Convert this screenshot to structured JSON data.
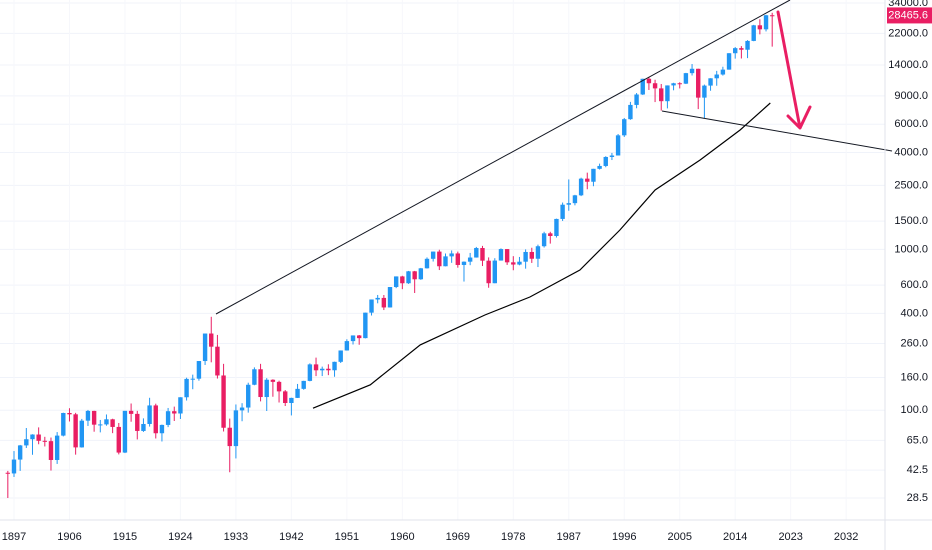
{
  "chart_data": {
    "type": "candlestick",
    "log_scale": true,
    "grid": true,
    "up_color": "#2196f3",
    "down_color": "#e91e63",
    "x": [
      1896,
      1897,
      1898,
      1899,
      1900,
      1901,
      1902,
      1903,
      1904,
      1905,
      1906,
      1907,
      1908,
      1909,
      1910,
      1911,
      1912,
      1913,
      1914,
      1915,
      1916,
      1917,
      1918,
      1919,
      1920,
      1921,
      1922,
      1923,
      1924,
      1925,
      1926,
      1927,
      1928,
      1929,
      1930,
      1931,
      1932,
      1933,
      1934,
      1935,
      1936,
      1937,
      1938,
      1939,
      1940,
      1941,
      1942,
      1943,
      1944,
      1945,
      1946,
      1947,
      1948,
      1949,
      1950,
      1951,
      1952,
      1953,
      1954,
      1955,
      1956,
      1957,
      1958,
      1959,
      1960,
      1961,
      1962,
      1963,
      1964,
      1965,
      1966,
      1967,
      1968,
      1969,
      1970,
      1971,
      1972,
      1973,
      1974,
      1975,
      1976,
      1977,
      1978,
      1979,
      1980,
      1981,
      1982,
      1983,
      1984,
      1985,
      1986,
      1987,
      1988,
      1989,
      1990,
      1991,
      1992,
      1993,
      1994,
      1995,
      1996,
      1997,
      1998,
      1999,
      2000,
      2001,
      2002,
      2003,
      2004,
      2005,
      2006,
      2007,
      2008,
      2009,
      2010,
      2011,
      2012,
      2013,
      2014,
      2015,
      2016,
      2017,
      2018,
      2019,
      2020
    ],
    "open": [
      40.9,
      40.5,
      49.4,
      60.5,
      66.1,
      70.7,
      64.6,
      64.3,
      49.1,
      69.6,
      96.2,
      94.4,
      58.8,
      86.2,
      99.1,
      81.4,
      81.7,
      87.9,
      78.8,
      54.6,
      99.2,
      95,
      74.4,
      82.2,
      107.2,
      72,
      81.1,
      98.7,
      95.5,
      120.5,
      156.7,
      157.2,
      202.4,
      300,
      248.5,
      164.6,
      77.9,
      59.9,
      99.9,
      104,
      144.1,
      179.9,
      120.9,
      154.8,
      150.2,
      131.1,
      111,
      119.4,
      135.9,
      152.3,
      192.9,
      177.2,
      181.2,
      177.3,
      200.1,
      235.4,
      269.2,
      291.9,
      280.9,
      404.4,
      488.4,
      499.5,
      435.7,
      583.7,
      679.4,
      615.9,
      731.1,
      652.1,
      763,
      874.1,
      969.3,
      785.7,
      905.1,
      943.8,
      800.4,
      838.9,
      890.2,
      1020,
      850.9,
      616.2,
      852.4,
      1004.7,
      831.2,
      805,
      838.7,
      964,
      875,
      1046.5,
      1258.6,
      1211.6,
      1546.7,
      1896,
      1938.8,
      2168.6,
      2753.2,
      2633.7,
      3168.8,
      3301.1,
      3754.1,
      3834.4,
      5117.1,
      6448.3,
      7908.3,
      9181.4,
      11497.1,
      10786.9,
      10021.5,
      8341.6,
      10453.9,
      10783,
      10717.5,
      12463.2,
      13264.8,
      8776.4,
      10428.1,
      11577.5,
      12217.6,
      13104.1,
      16576.7,
      17823.1,
      17425,
      19762.6,
      24719.2,
      23327.5,
      28538.4
    ],
    "high": [
      42,
      55.8,
      60.9,
      77.6,
      71,
      78.3,
      68.4,
      67.7,
      73.2,
      96.6,
      103,
      96.4,
      88.4,
      100.5,
      99.3,
      87.1,
      94.2,
      88.6,
      83.4,
      99.2,
      110.2,
      99.2,
      89.1,
      119.6,
      109.9,
      81.5,
      103.4,
      105.4,
      120.5,
      159.4,
      166.6,
      202.4,
      300,
      381.2,
      294.1,
      194.4,
      88.8,
      108.7,
      110.7,
      148.4,
      184.9,
      194.4,
      158.4,
      155.9,
      152.8,
      133.6,
      119.7,
      145.8,
      152.5,
      195.8,
      212.5,
      186.9,
      193.2,
      200.5,
      235.5,
      276.4,
      292,
      293.8,
      404.4,
      488.4,
      521,
      520.8,
      583.7,
      679.4,
      685.5,
      734.9,
      735,
      767.2,
      891.7,
      969.3,
      995.2,
      943.1,
      985.2,
      968.9,
      842,
      950.8,
      1036.3,
      1051.7,
      891.7,
      881.8,
      1014.8,
      1005,
      907.7,
      897.6,
      1000.2,
      1024.1,
      1070.6,
      1287.2,
      1286.6,
      1553.1,
      1955.6,
      2722.4,
      2183.5,
      2791.4,
      2999.8,
      3168.8,
      3413.2,
      3794.3,
      3978.4,
      5216.5,
      6560.9,
      8259.3,
      9374.3,
      11497.1,
      11723,
      11337.9,
      10673,
      10453.9,
      10854.5,
      10940.6,
      12510.6,
      14198.1,
      13279.5,
      10580.3,
      11585.4,
      12876,
      13661.9,
      16588.3,
      18103.5,
      18351.4,
      19987.6,
      24876.1,
      26951.8,
      28701.7,
      29568.6
    ],
    "low": [
      28.5,
      38.5,
      42,
      58.3,
      52.9,
      61.5,
      59.6,
      42.2,
      46.4,
      68.8,
      85.2,
      53,
      58.6,
      79.9,
      73.6,
      72.9,
      80.2,
      72.1,
      53.2,
      54.2,
      84.9,
      65.9,
      73.4,
      79.2,
      66.8,
      64,
      78.6,
      85.8,
      88.3,
      115,
      135.2,
      152.7,
      191.3,
      198.7,
      157.5,
      73.8,
      41.2,
      50.2,
      85.5,
      96.7,
      143.1,
      113.6,
      99,
      121.4,
      111.8,
      106.3,
      92.9,
      119.3,
      134.2,
      151.4,
      163.1,
      163.2,
      165.4,
      161.6,
      196.8,
      235,
      256.4,
      255.5,
      279.9,
      388.2,
      462.4,
      419.8,
      435,
      574.5,
      566.1,
      610.3,
      535.8,
      646.8,
      760,
      840.6,
      744.3,
      785,
      825.1,
      769.9,
      631.2,
      797.9,
      889.2,
      788.3,
      577.6,
      616,
      852,
      800.9,
      742.1,
      796.7,
      759.1,
      824,
      776.9,
      1027,
      1086.6,
      1184.9,
      1502.3,
      1738.7,
      1879.1,
      2144.6,
      2365.1,
      2470.3,
      3136.6,
      3241.9,
      3593.4,
      3832.1,
      5000,
      6391.7,
      7539.1,
      9120.7,
      9796,
      8235.8,
      7286.3,
      7524.1,
      9749.9,
      10012.4,
      10661.2,
      12050.4,
      7449.4,
      6547,
      9686.5,
      10404.5,
      12035.1,
      13100,
      15340.7,
      15370.3,
      15450.6,
      19677.9,
      21712.5,
      22638.4,
      18213.7
    ],
    "close": [
      40.5,
      49.4,
      60.5,
      66.1,
      70.7,
      64.6,
      64.3,
      49.1,
      69.6,
      96.2,
      94.4,
      58.8,
      86.2,
      99.1,
      81.4,
      81.7,
      87.9,
      78.8,
      54.6,
      99.2,
      95,
      74.4,
      82.2,
      107.2,
      72,
      81.1,
      98.7,
      95.5,
      120.5,
      156.7,
      157.2,
      202.4,
      300,
      248.5,
      164.6,
      77.9,
      59.9,
      99.9,
      104,
      144.1,
      179.9,
      120.9,
      154.8,
      150.2,
      131.1,
      111,
      119.4,
      135.9,
      152.3,
      192.9,
      177.2,
      181.2,
      177.3,
      200.1,
      235.4,
      269.2,
      291.9,
      280.9,
      404.4,
      488.4,
      499.5,
      435.7,
      583.7,
      679.4,
      615.9,
      731.1,
      652.1,
      763,
      874.1,
      969.3,
      785.7,
      905.1,
      943.8,
      800.4,
      838.9,
      890.2,
      1020,
      850.9,
      616.2,
      852.4,
      1004.7,
      831.2,
      805,
      838.7,
      964,
      875,
      1046.5,
      1258.6,
      1211.6,
      1546.7,
      1896,
      1938.8,
      2168.6,
      2753.2,
      2633.7,
      3168.8,
      3301.1,
      3754.1,
      3834.4,
      5117.1,
      6448.3,
      7908.3,
      9181.4,
      11497.1,
      10786.9,
      10021.5,
      8341.6,
      10453.9,
      10783,
      10717.5,
      12463.2,
      13264.8,
      8776.4,
      10428.1,
      11577.5,
      12217.6,
      13104.1,
      16576.7,
      17823.1,
      17425,
      19762.6,
      24719.2,
      23327.5,
      28538.4,
      28465.6
    ],
    "moving_average": {
      "color": "#000000",
      "x": [
        1945.5,
        1954.8,
        1962.9,
        1973.4,
        1980.7,
        1988.8,
        1995.3,
        2001,
        2008.3,
        2014.8,
        2019.7
      ],
      "values": [
        103,
        144,
        255,
        391,
        506,
        745,
        1321,
        2339,
        3595,
        5521,
        8128
      ]
    },
    "last_price": 28465.6,
    "xlim": [
      1894.73,
      2038.3
    ],
    "xticks": [
      1897,
      1906,
      1915,
      1924,
      1933,
      1942,
      1951,
      1960,
      1969,
      1978,
      1987,
      1996,
      2005,
      2014,
      2023,
      2032
    ],
    "ylim": [
      20.8,
      35500
    ],
    "yticks": [
      28.5,
      42.5,
      {
        "value": 65,
        "label": "65.0"
      },
      {
        "value": 100,
        "label": "100.0"
      },
      {
        "value": 160,
        "label": "160.0"
      },
      {
        "value": 260,
        "label": "260.0"
      },
      {
        "value": 400,
        "label": "400.0"
      },
      {
        "value": 600,
        "label": "600.0"
      },
      {
        "value": 1000,
        "label": "1000.0"
      },
      {
        "value": 1500,
        "label": "1500.0"
      },
      {
        "value": 2500,
        "label": "2500.0"
      },
      {
        "value": 4000,
        "label": "4000.0"
      },
      {
        "value": 6000,
        "label": "6000.0"
      },
      {
        "value": 9000,
        "label": "9000.0"
      },
      {
        "value": 14000,
        "label": "14000.0"
      },
      {
        "value": 22000,
        "label": "22000.0"
      },
      {
        "value": 34000,
        "label": "34000.0"
      }
    ]
  }
}
